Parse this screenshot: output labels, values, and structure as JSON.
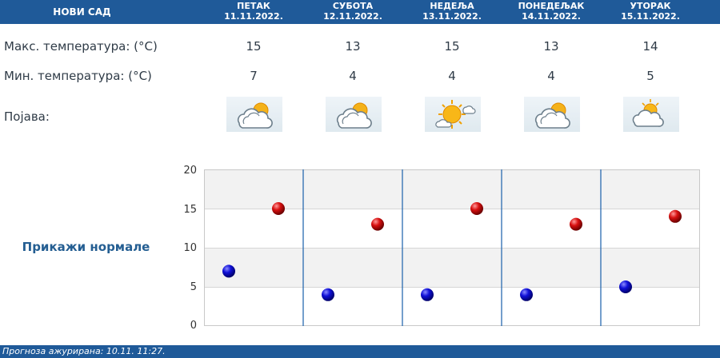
{
  "header": {
    "city": "НОВИ САД",
    "days": [
      {
        "name": "ПЕТАК",
        "date": "11.11.2022."
      },
      {
        "name": "СУБОТА",
        "date": "12.11.2022."
      },
      {
        "name": "НЕДЕЉА",
        "date": "13.11.2022."
      },
      {
        "name": "ПОНЕДЕЉАК",
        "date": "14.11.2022."
      },
      {
        "name": "УТОРАК",
        "date": "15.11.2022."
      }
    ]
  },
  "rows": {
    "max_label": "Макс. температура: (°C)",
    "min_label": "Мин. температура: (°C)",
    "phenomenon_label": "Појава:",
    "max_values": [
      "15",
      "13",
      "15",
      "13",
      "14"
    ],
    "min_values": [
      "7",
      "4",
      "4",
      "4",
      "5"
    ],
    "icons": [
      "cloudy-sun-icon",
      "cloudy-sun-icon",
      "sunny-cloud-icon",
      "cloudy-sun-icon",
      "partly-cloudy-icon"
    ]
  },
  "normals_link": "Прикажи нормале",
  "chart_data": {
    "type": "scatter",
    "categories": [
      "11.11.2022.",
      "12.11.2022.",
      "13.11.2022.",
      "14.11.2022.",
      "15.11.2022."
    ],
    "series": [
      {
        "name": "",
        "color": "#0000cc",
        "values": [
          7,
          4,
          4,
          4,
          5
        ]
      },
      {
        "name": "",
        "color": "#cc0000",
        "values": [
          15,
          13,
          15,
          13,
          14
        ]
      }
    ],
    "yticks": [
      "0",
      "5",
      "10",
      "15",
      "20"
    ],
    "ylim": [
      0,
      20
    ],
    "grid": true,
    "title": "",
    "xlabel": "",
    "ylabel": ""
  },
  "footer": "Прогноза ажурирана:  10.11.  11:27."
}
